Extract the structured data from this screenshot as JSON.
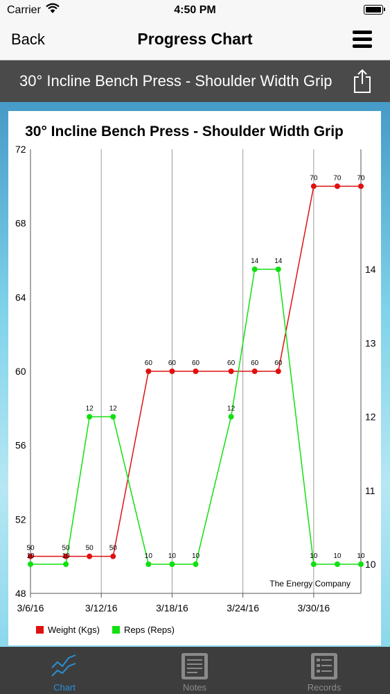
{
  "status_bar": {
    "carrier": "Carrier",
    "time": "4:50 PM"
  },
  "nav": {
    "back_label": "Back",
    "title": "Progress Chart"
  },
  "header": {
    "exercise": "30° Incline Bench Press - Shoulder Width Grip"
  },
  "tabs": [
    {
      "label": "Chart",
      "icon": "chart-icon",
      "active": true
    },
    {
      "label": "Notes",
      "icon": "notes-icon",
      "active": false
    },
    {
      "label": "Records",
      "icon": "records-icon",
      "active": false
    }
  ],
  "colors": {
    "weight": "#e01010",
    "reps": "#10e010",
    "tab_active": "#2a8fd6"
  },
  "chart_data": {
    "type": "line",
    "title": "30° Incline Bench Press - Shoulder Width Grip",
    "watermark": "The Energy Company",
    "x_ticks": [
      {
        "value": 0,
        "label": "3/6/16"
      },
      {
        "value": 6,
        "label": "3/12/16"
      },
      {
        "value": 12,
        "label": "3/18/16"
      },
      {
        "value": 18,
        "label": "3/24/16"
      },
      {
        "value": 24,
        "label": "3/30/16"
      }
    ],
    "xlim": [
      0,
      28
    ],
    "y_left": {
      "min": 48,
      "max": 72,
      "ticks": [
        48,
        52,
        56,
        60,
        64,
        68,
        72
      ]
    },
    "y_right": {
      "ticks": [
        10,
        11,
        12,
        13,
        14
      ]
    },
    "series": [
      {
        "name": "Weight (Kgs)",
        "axis": "left",
        "color": "#e01010",
        "points": [
          {
            "x": 0,
            "y": 50,
            "label": "50"
          },
          {
            "x": 3,
            "y": 50,
            "label": "50"
          },
          {
            "x": 5,
            "y": 50,
            "label": "50"
          },
          {
            "x": 7,
            "y": 50,
            "label": "50"
          },
          {
            "x": 10,
            "y": 60,
            "label": "60"
          },
          {
            "x": 12,
            "y": 60,
            "label": "60"
          },
          {
            "x": 14,
            "y": 60,
            "label": "60"
          },
          {
            "x": 17,
            "y": 60,
            "label": "60"
          },
          {
            "x": 19,
            "y": 60,
            "label": "60"
          },
          {
            "x": 21,
            "y": 60,
            "label": "60"
          },
          {
            "x": 24,
            "y": 70,
            "label": "70"
          },
          {
            "x": 26,
            "y": 70,
            "label": "70"
          },
          {
            "x": 28,
            "y": 70,
            "label": "70"
          }
        ]
      },
      {
        "name": "Reps (Reps)",
        "axis": "right",
        "color": "#10e010",
        "points": [
          {
            "x": 0,
            "y": 10,
            "label": "10"
          },
          {
            "x": 3,
            "y": 10,
            "label": "10"
          },
          {
            "x": 5,
            "y": 12,
            "label": "12"
          },
          {
            "x": 7,
            "y": 12,
            "label": "12"
          },
          {
            "x": 10,
            "y": 10,
            "label": "10"
          },
          {
            "x": 12,
            "y": 10,
            "label": "10"
          },
          {
            "x": 14,
            "y": 10,
            "label": "10"
          },
          {
            "x": 17,
            "y": 12,
            "label": "12"
          },
          {
            "x": 19,
            "y": 14,
            "label": "14"
          },
          {
            "x": 21,
            "y": 14,
            "label": "14"
          },
          {
            "x": 24,
            "y": 10,
            "label": "10"
          },
          {
            "x": 26,
            "y": 10,
            "label": "10"
          },
          {
            "x": 28,
            "y": 10,
            "label": "10"
          }
        ]
      }
    ],
    "legend_placement": "bottom-left"
  }
}
